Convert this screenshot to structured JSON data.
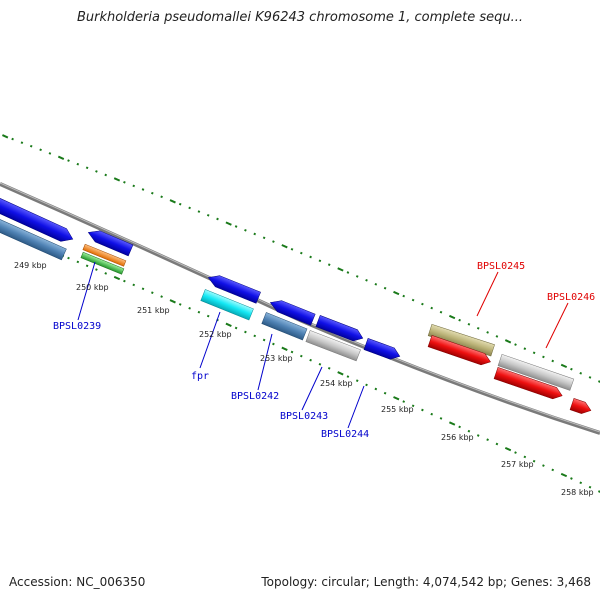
{
  "title": "Burkholderia pseudomallei K96243 chromosome 1, complete sequ...",
  "footer": {
    "accession": "Accession: NC_006350",
    "summary": "Topology: circular; Length: 4,074,542 bp; Genes: 3,468"
  },
  "scale_labels": [
    "249 kbp",
    "250 kbp",
    "251 kbp",
    "252 kbp",
    "253 kbp",
    "254 kbp",
    "255 kbp",
    "256 kbp",
    "257 kbp",
    "258 kbp"
  ],
  "gene_labels": {
    "bpsl0239": "BPSL0239",
    "fpr": "fpr",
    "bpsl0242": "BPSL0242",
    "bpsl0243": "BPSL0243",
    "bpsl0244": "BPSL0244",
    "bpsl0245": "BPSL0245",
    "bpsl0246": "BPSL0246"
  },
  "colors": {
    "backbone": "#7a7a7a",
    "tick": "#1a7a1a",
    "forward_label": "#e00000",
    "reverse_label": "#0000cc",
    "blue": "#1010e6",
    "steel": "#4f82b4",
    "cyan": "#14e8f4",
    "orange": "#ff8c10",
    "green": "#3cc83c",
    "gray": "#c8c8c8",
    "olive": "#bcb479",
    "red": "#ee1010"
  }
}
